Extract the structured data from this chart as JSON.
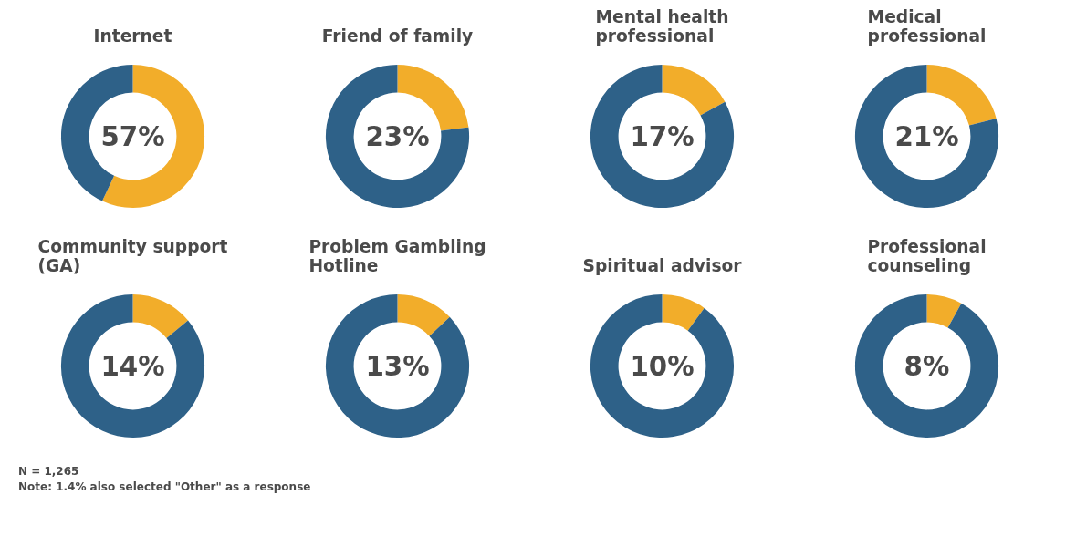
{
  "chart_data": [
    {
      "type": "donut",
      "title": "Internet",
      "categories": [
        null,
        null
      ],
      "values": [
        57,
        43
      ],
      "colors": [
        "#f2ad2a",
        "#2e6188"
      ],
      "annotations": [
        "57%"
      ]
    },
    {
      "type": "donut",
      "title": "Friend of family",
      "categories": [
        null,
        null
      ],
      "values": [
        23,
        77
      ],
      "colors": [
        "#f2ad2a",
        "#2e6188"
      ],
      "annotations": [
        "23%"
      ]
    },
    {
      "type": "donut",
      "title": "Mental health professional",
      "categories": [
        null,
        null
      ],
      "values": [
        17,
        83
      ],
      "colors": [
        "#f2ad2a",
        "#2e6188"
      ],
      "annotations": [
        "17%"
      ]
    },
    {
      "type": "donut",
      "title": "Medical professional",
      "categories": [
        null,
        null
      ],
      "values": [
        21,
        79
      ],
      "colors": [
        "#f2ad2a",
        "#2e6188"
      ],
      "annotations": [
        "21%"
      ]
    },
    {
      "type": "donut",
      "title": "Community support (GA)",
      "categories": [
        null,
        null
      ],
      "values": [
        14,
        86
      ],
      "colors": [
        "#f2ad2a",
        "#2e6188"
      ],
      "annotations": [
        "14%"
      ]
    },
    {
      "type": "donut",
      "title": "Problem Gambling Hotline",
      "categories": [
        null,
        null
      ],
      "values": [
        13,
        87
      ],
      "colors": [
        "#f2ad2a",
        "#2e6188"
      ],
      "annotations": [
        "13%"
      ]
    },
    {
      "type": "donut",
      "title": "Spiritual advisor",
      "categories": [
        null,
        null
      ],
      "values": [
        10,
        90
      ],
      "colors": [
        "#f2ad2a",
        "#2e6188"
      ],
      "annotations": [
        "10%"
      ]
    },
    {
      "type": "donut",
      "title": "Professional counseling",
      "categories": [
        null,
        null
      ],
      "values": [
        8,
        92
      ],
      "colors": [
        "#f2ad2a",
        "#2e6188"
      ],
      "annotations": [
        "8%",
        "N = 1,265",
        "Note: 1.4% also selected \"Other\" as a response"
      ]
    }
  ]
}
